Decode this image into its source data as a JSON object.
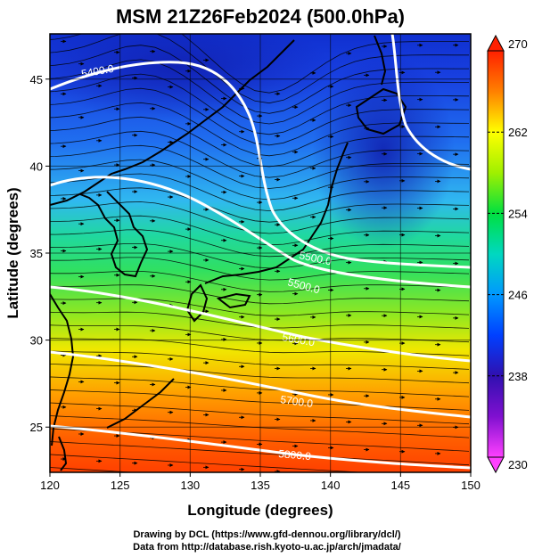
{
  "title": "MSM 21Z26Feb2024 (500.0hPa)",
  "map": {
    "lon_range": [
      120,
      150
    ],
    "lat_range": [
      22.4,
      47.6
    ],
    "xlabel": "Longitude (degrees)",
    "ylabel": "Latitude  (degrees)",
    "x_ticks": [
      "120",
      "125",
      "130",
      "135",
      "140",
      "145",
      "150"
    ],
    "y_ticks": [
      "25",
      "30",
      "35",
      "40",
      "45"
    ],
    "field": "temperature",
    "vectors": "wind streamlines",
    "grid": true
  },
  "colorbar": {
    "range": [
      230,
      270
    ],
    "tick_labels": [
      "230",
      "238",
      "246",
      "254",
      "262",
      "270"
    ],
    "colors": [
      "#ff40ff",
      "#4000c0",
      "#0050ff",
      "#00d0ff",
      "#00e060",
      "#a0f000",
      "#ffff00",
      "#ff8000",
      "#ff2000"
    ]
  },
  "contours": [
    {
      "label": "5400.0"
    },
    {
      "label": "5500.0"
    },
    {
      "label": "5500.0"
    },
    {
      "label": "5600.0"
    },
    {
      "label": "5700.0"
    },
    {
      "label": "5800.0"
    }
  ],
  "credits": {
    "line1": "Drawing by DCL (https://www.gfd-dennou.org/library/dcl/)",
    "line2": "Data from http://database.rish.kyoto-u.ac.jp/arch/jmadata/"
  }
}
